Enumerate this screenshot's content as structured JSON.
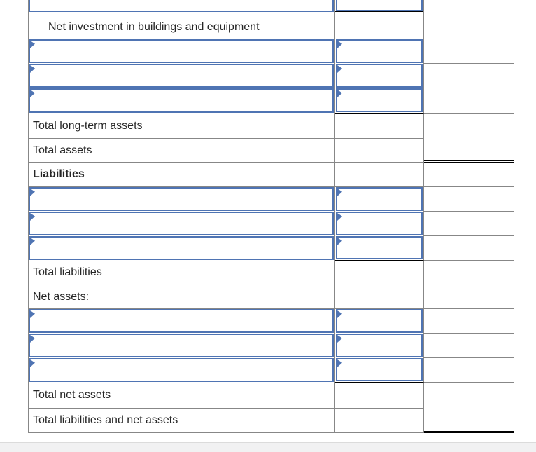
{
  "colors": {
    "input_border": "#4f74b3",
    "grid": "#878787",
    "text": "#262626",
    "rule": "#000000",
    "strip": "#f1f1f2",
    "strip_border": "#dbdbdb"
  },
  "rows": [
    {
      "kind": "partial_input_row",
      "account_value": "",
      "amount_value": ""
    },
    {
      "kind": "label",
      "text": "Net investment in buildings and equipment"
    },
    {
      "kind": "input_row",
      "account_value": "",
      "amount_value": ""
    },
    {
      "kind": "input_row",
      "account_value": "",
      "amount_value": ""
    },
    {
      "kind": "input_row",
      "account_value": "",
      "amount_value": ""
    },
    {
      "kind": "label",
      "text": "Total long-term assets"
    },
    {
      "kind": "label",
      "text": "Total assets"
    },
    {
      "kind": "label",
      "text": "Liabilities"
    },
    {
      "kind": "input_row",
      "account_value": "",
      "amount_value": ""
    },
    {
      "kind": "input_row",
      "account_value": "",
      "amount_value": ""
    },
    {
      "kind": "input_row",
      "account_value": "",
      "amount_value": ""
    },
    {
      "kind": "label",
      "text": "Total liabilities"
    },
    {
      "kind": "label",
      "text": "Net assets:"
    },
    {
      "kind": "input_row",
      "account_value": "",
      "amount_value": ""
    },
    {
      "kind": "input_row",
      "account_value": "",
      "amount_value": ""
    },
    {
      "kind": "input_row",
      "account_value": "",
      "amount_value": ""
    },
    {
      "kind": "label",
      "text": "Total net assets"
    },
    {
      "kind": "label",
      "text": "Total liabilities and net assets"
    }
  ]
}
